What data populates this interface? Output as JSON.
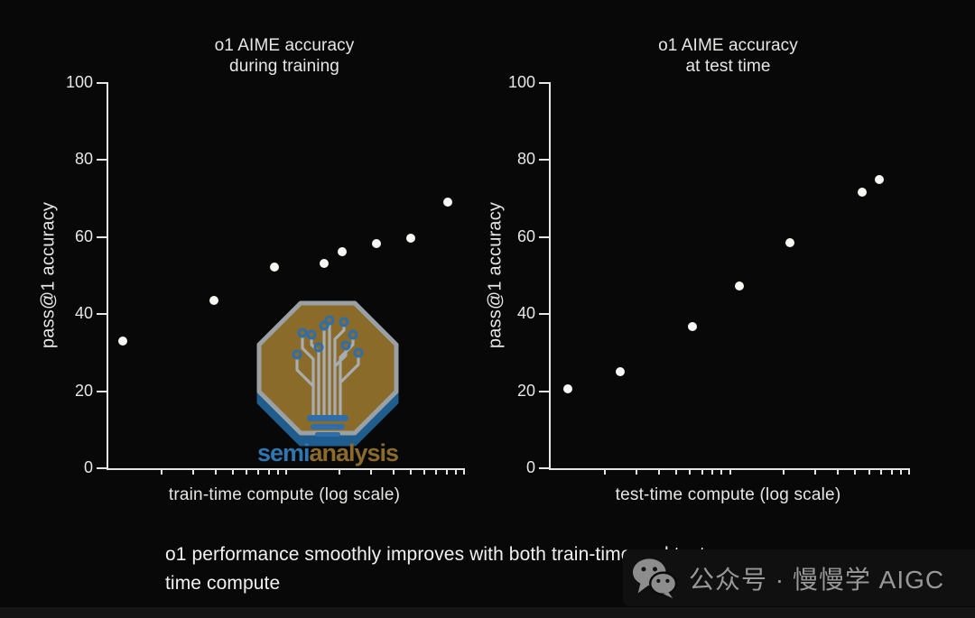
{
  "page": {
    "background_color": "#080808",
    "axis_color": "#e6e6e4",
    "marker_color": "#f7f7f4"
  },
  "chart_data": [
    {
      "type": "scatter",
      "title": "o1 AIME accuracy during training",
      "title_lines": [
        "o1 AIME accuracy",
        "during training"
      ],
      "xlabel": "train-time compute (log scale)",
      "ylabel": "pass@1 accuracy",
      "ylim": [
        0,
        100
      ],
      "yticks": [
        0,
        20,
        40,
        60,
        80,
        100
      ],
      "x_axis_note": "unlabeled log-scale axis, two decades of minor ticks",
      "grid": "off",
      "points": [
        {
          "x_frac": 0.041,
          "y": 33.0
        },
        {
          "x_frac": 0.298,
          "y": 43.5
        },
        {
          "x_frac": 0.467,
          "y": 52.3
        },
        {
          "x_frac": 0.607,
          "y": 53.1
        },
        {
          "x_frac": 0.658,
          "y": 56.1
        },
        {
          "x_frac": 0.755,
          "y": 58.4
        },
        {
          "x_frac": 0.849,
          "y": 59.8
        },
        {
          "x_frac": 0.954,
          "y": 69.0
        }
      ]
    },
    {
      "type": "scatter",
      "title": "o1 AIME accuracy at test time",
      "title_lines": [
        "o1 AIME accuracy",
        "at test time"
      ],
      "xlabel": "test-time compute (log scale)",
      "ylabel": "pass@1 accuracy",
      "ylim": [
        0,
        100
      ],
      "yticks": [
        0,
        20,
        40,
        60,
        80,
        100
      ],
      "x_axis_note": "unlabeled log-scale axis, two decades of minor ticks",
      "grid": "off",
      "points": [
        {
          "x_frac": 0.048,
          "y": 20.5
        },
        {
          "x_frac": 0.194,
          "y": 25.0
        },
        {
          "x_frac": 0.395,
          "y": 36.7
        },
        {
          "x_frac": 0.526,
          "y": 47.2
        },
        {
          "x_frac": 0.667,
          "y": 58.6
        },
        {
          "x_frac": 0.869,
          "y": 71.6
        },
        {
          "x_frac": 0.917,
          "y": 75.0
        }
      ]
    }
  ],
  "caption": {
    "line1": "o1 performance smoothly improves with both train-time and test-",
    "line2": "time compute"
  },
  "logo": {
    "wordmark_semi": "semi",
    "wordmark_analysis": "analysis",
    "colors": {
      "octagon_gold": "#8a6b2a",
      "octagon_outline": "#9aa0a4",
      "shadow_blue": "#1f5d8f",
      "trace_gray": "#a9adb0",
      "terminal_blue": "#2f6ea8",
      "wordmark_blue": "#2d77b2",
      "wordmark_gold": "#8a6b2a"
    }
  },
  "watermark": {
    "icon": "wechat-icon",
    "text": "公众号 · 慢慢学 AIGC",
    "text_color": "#989898"
  }
}
